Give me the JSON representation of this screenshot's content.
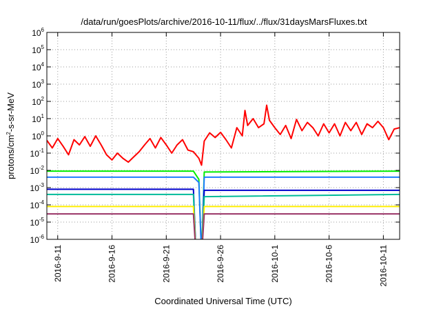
{
  "chart_data": {
    "type": "line",
    "title": "/data/run/goesPlots/archive/2016-10-11/flux/../flux/31daysMarsFluxes.txt",
    "xlabel": "Coordinated Universal Time (UTC)",
    "ylabel": {
      "pre": "protons/cm",
      "sup": "2",
      "post": "-s-sr-MeV"
    },
    "yscale": "log",
    "ylim": [
      1e-06,
      1000000.0
    ],
    "xlim": [
      "2016-09-10T00:00",
      "2016-10-12T12:00"
    ],
    "grid": true,
    "yticks": [
      {
        "value": 1e-06,
        "base": "10",
        "exp": "-6"
      },
      {
        "value": 1e-05,
        "base": "10",
        "exp": "-5"
      },
      {
        "value": 0.0001,
        "base": "10",
        "exp": "-4"
      },
      {
        "value": 0.001,
        "base": "10",
        "exp": "-3"
      },
      {
        "value": 0.01,
        "base": "10",
        "exp": "-2"
      },
      {
        "value": 0.1,
        "base": "10",
        "exp": "-1"
      },
      {
        "value": 1,
        "base": "10",
        "exp": "0"
      },
      {
        "value": 10,
        "base": "10",
        "exp": "1"
      },
      {
        "value": 100,
        "base": "10",
        "exp": "2"
      },
      {
        "value": 1000,
        "base": "10",
        "exp": "3"
      },
      {
        "value": 10000,
        "base": "10",
        "exp": "4"
      },
      {
        "value": 100000,
        "base": "10",
        "exp": "5"
      },
      {
        "value": 1000000,
        "base": "10",
        "exp": "6"
      }
    ],
    "xticks": [
      {
        "date": "2016-09-11",
        "label": "2016-9-11"
      },
      {
        "date": "2016-09-16",
        "label": "2016-9-16"
      },
      {
        "date": "2016-09-21",
        "label": "2016-9-21"
      },
      {
        "date": "2016-09-26",
        "label": "2016-9-26"
      },
      {
        "date": "2016-10-01",
        "label": "2016-10-1"
      },
      {
        "date": "2016-10-06",
        "label": "2016-10-6"
      },
      {
        "date": "2016-10-11",
        "label": "2016-10-11"
      }
    ],
    "series": [
      {
        "color": "#ff0000",
        "points": [
          [
            "2016-09-10T00:00",
            0.55
          ],
          [
            "2016-09-10T12:00",
            0.2
          ],
          [
            "2016-09-11T00:00",
            0.7
          ],
          [
            "2016-09-11T12:00",
            0.25
          ],
          [
            "2016-09-12T00:00",
            0.08
          ],
          [
            "2016-09-12T12:00",
            0.6
          ],
          [
            "2016-09-13T00:00",
            0.3
          ],
          [
            "2016-09-13T12:00",
            0.9
          ],
          [
            "2016-09-14T00:00",
            0.25
          ],
          [
            "2016-09-14T12:00",
            1.0
          ],
          [
            "2016-09-15T00:00",
            0.3
          ],
          [
            "2016-09-15T12:00",
            0.08
          ],
          [
            "2016-09-16T00:00",
            0.04
          ],
          [
            "2016-09-16T12:00",
            0.1
          ],
          [
            "2016-09-17T00:00",
            0.05
          ],
          [
            "2016-09-17T12:00",
            0.03
          ],
          [
            "2016-09-18T00:00",
            0.06
          ],
          [
            "2016-09-18T12:00",
            0.12
          ],
          [
            "2016-09-19T00:00",
            0.3
          ],
          [
            "2016-09-19T12:00",
            0.7
          ],
          [
            "2016-09-20T00:00",
            0.2
          ],
          [
            "2016-09-20T12:00",
            0.8
          ],
          [
            "2016-09-21T00:00",
            0.3
          ],
          [
            "2016-09-21T12:00",
            0.1
          ],
          [
            "2016-09-22T00:00",
            0.3
          ],
          [
            "2016-09-22T12:00",
            0.6
          ],
          [
            "2016-09-23T00:00",
            0.15
          ],
          [
            "2016-09-23T12:00",
            0.12
          ],
          [
            "2016-09-24T00:00",
            0.05
          ],
          [
            "2016-09-24T06:00",
            0.02
          ],
          [
            "2016-09-24T12:00",
            0.5
          ],
          [
            "2016-09-25T00:00",
            1.5
          ],
          [
            "2016-09-25T12:00",
            0.8
          ],
          [
            "2016-09-26T00:00",
            1.6
          ],
          [
            "2016-09-26T12:00",
            0.6
          ],
          [
            "2016-09-27T00:00",
            0.2
          ],
          [
            "2016-09-27T12:00",
            3.0
          ],
          [
            "2016-09-28T00:00",
            1.0
          ],
          [
            "2016-09-28T06:00",
            30
          ],
          [
            "2016-09-28T12:00",
            4
          ],
          [
            "2016-09-29T00:00",
            10
          ],
          [
            "2016-09-29T12:00",
            3
          ],
          [
            "2016-09-30T00:00",
            5
          ],
          [
            "2016-09-30T06:00",
            60
          ],
          [
            "2016-09-30T12:00",
            8
          ],
          [
            "2016-10-01T00:00",
            3
          ],
          [
            "2016-10-01T12:00",
            1.2
          ],
          [
            "2016-10-02T00:00",
            4
          ],
          [
            "2016-10-02T12:00",
            0.7
          ],
          [
            "2016-10-03T00:00",
            9
          ],
          [
            "2016-10-03T12:00",
            2
          ],
          [
            "2016-10-04T00:00",
            6
          ],
          [
            "2016-10-04T12:00",
            3
          ],
          [
            "2016-10-05T00:00",
            1.0
          ],
          [
            "2016-10-05T12:00",
            5
          ],
          [
            "2016-10-06T00:00",
            1.5
          ],
          [
            "2016-10-06T12:00",
            5
          ],
          [
            "2016-10-07T00:00",
            1.0
          ],
          [
            "2016-10-07T12:00",
            6
          ],
          [
            "2016-10-08T00:00",
            2
          ],
          [
            "2016-10-08T12:00",
            6
          ],
          [
            "2016-10-09T00:00",
            1.2
          ],
          [
            "2016-10-09T12:00",
            5
          ],
          [
            "2016-10-10T00:00",
            3
          ],
          [
            "2016-10-10T12:00",
            7
          ],
          [
            "2016-10-11T00:00",
            3
          ],
          [
            "2016-10-11T12:00",
            0.6
          ],
          [
            "2016-10-12T00:00",
            2.5
          ],
          [
            "2016-10-12T12:00",
            3
          ]
        ]
      },
      {
        "color": "#00ee00",
        "points": [
          [
            "2016-09-10T00:00",
            0.009
          ],
          [
            "2016-09-23T12:00",
            0.009
          ],
          [
            "2016-09-24T00:00",
            0.003
          ],
          [
            "2016-09-24T06:00",
            1e-07
          ],
          [
            "2016-09-24T12:00",
            0.008
          ],
          [
            "2016-10-12T12:00",
            0.009
          ]
        ]
      },
      {
        "color": "#1e7cff",
        "points": [
          [
            "2016-09-10T00:00",
            0.004
          ],
          [
            "2016-09-23T12:00",
            0.004
          ],
          [
            "2016-09-24T00:00",
            0.002
          ],
          [
            "2016-09-24T06:00",
            1e-07
          ],
          [
            "2016-09-24T12:00",
            0.004
          ],
          [
            "2016-10-12T12:00",
            0.004
          ]
        ]
      },
      {
        "color": "#0000cc",
        "points": [
          [
            "2016-09-10T00:00",
            0.0008
          ],
          [
            "2016-09-23T12:00",
            0.0008
          ],
          [
            "2016-09-23T18:00",
            1e-07
          ],
          [
            "2016-09-24T06:00",
            1e-07
          ],
          [
            "2016-09-24T12:00",
            0.0007
          ],
          [
            "2016-10-12T12:00",
            0.0007
          ]
        ]
      },
      {
        "color": "#00bb99",
        "points": [
          [
            "2016-09-10T00:00",
            0.0004
          ],
          [
            "2016-09-23T12:00",
            0.0004
          ],
          [
            "2016-09-23T18:00",
            1e-07
          ],
          [
            "2016-09-24T06:00",
            1e-07
          ],
          [
            "2016-09-24T12:00",
            0.0003
          ],
          [
            "2016-10-12T12:00",
            0.0004
          ]
        ]
      },
      {
        "color": "#ffee00",
        "points": [
          [
            "2016-09-10T00:00",
            8e-05
          ],
          [
            "2016-09-23T12:00",
            8e-05
          ],
          [
            "2016-09-23T18:00",
            1e-07
          ],
          [
            "2016-09-24T06:00",
            1e-07
          ],
          [
            "2016-09-24T12:00",
            8e-05
          ],
          [
            "2016-10-12T12:00",
            8e-05
          ]
        ]
      },
      {
        "color": "#993366",
        "points": [
          [
            "2016-09-10T00:00",
            3e-05
          ],
          [
            "2016-09-23T12:00",
            3e-05
          ],
          [
            "2016-09-23T18:00",
            1e-07
          ],
          [
            "2016-09-24T06:00",
            1e-07
          ],
          [
            "2016-09-24T12:00",
            3e-05
          ],
          [
            "2016-10-12T12:00",
            3e-05
          ]
        ]
      }
    ]
  }
}
